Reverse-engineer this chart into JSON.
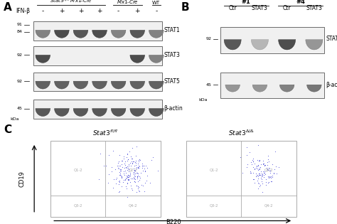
{
  "panel_A": {
    "label": "A",
    "ifn_signs": [
      "-",
      "+",
      "+",
      "+",
      "-",
      "+",
      "-"
    ],
    "blots": [
      "STAT1",
      "STAT3",
      "STAT5",
      "β-actin"
    ],
    "mw_labels_stat1": [
      "91",
      "84"
    ],
    "mw_labels_other": [
      "92",
      "92",
      "45"
    ],
    "n_lanes": 7,
    "stat1_intensities": [
      0.6,
      0.85,
      0.8,
      0.85,
      0.6,
      0.8,
      0.6
    ],
    "stat3_intensities": [
      0.85,
      0.0,
      0.0,
      0.0,
      0.0,
      0.85,
      0.6
    ],
    "stat5_intensities": [
      0.75,
      0.75,
      0.75,
      0.75,
      0.75,
      0.75,
      0.75
    ],
    "bactin_intensities": [
      0.8,
      0.8,
      0.8,
      0.8,
      0.8,
      0.8,
      0.8
    ]
  },
  "panel_B": {
    "label": "B",
    "sublabels": [
      "Ctr",
      "STAT3",
      "Ctr",
      "STAT3"
    ],
    "blots": [
      "STAT3",
      "β-actin"
    ],
    "mw_labels": [
      "92",
      "45"
    ],
    "n_lanes": 4,
    "stat3_intensities": [
      0.8,
      0.35,
      0.85,
      0.5
    ],
    "bactin_intensities": [
      0.5,
      0.5,
      0.6,
      0.65
    ]
  },
  "panel_C": {
    "label": "C",
    "plot1_title": "Stat3^{fl/fl}",
    "plot2_title": "Stat3^{\\Delta/\\Delta}",
    "xlabel": "B220",
    "ylabel": "CD19",
    "dot_color": "#1010cc",
    "n_dots1": 200,
    "n_dots2": 120
  },
  "bg_color": "#ffffff",
  "text_color": "#000000",
  "band_bg": "#d8d8d8",
  "box_edge": "#555555"
}
